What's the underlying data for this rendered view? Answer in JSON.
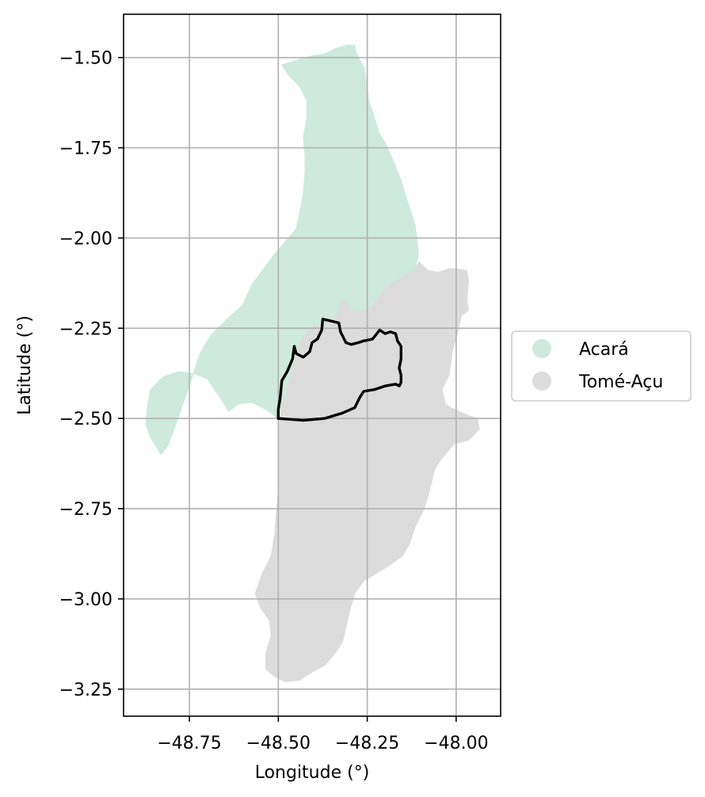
{
  "chart_data": {
    "type": "map",
    "xlabel": "Longitude (°)",
    "ylabel": "Latitude (°)",
    "xlim": [
      -48.935,
      -47.875
    ],
    "ylim": [
      -3.325,
      -1.38
    ],
    "xticks": [
      -48.75,
      -48.5,
      -48.25,
      -48.0
    ],
    "xtick_labels": [
      "−48.75",
      "−48.50",
      "−48.25",
      "−48.00"
    ],
    "yticks": [
      -1.5,
      -1.75,
      -2.0,
      -2.25,
      -2.5,
      -2.75,
      -3.0,
      -3.25
    ],
    "ytick_labels": [
      "−1.50",
      "−1.75",
      "−2.00",
      "−2.25",
      "−2.50",
      "−2.75",
      "−3.00",
      "−3.25"
    ],
    "grid": true,
    "legend_position": "right",
    "legend": [
      {
        "label": "Acará",
        "color": "#cdeadd"
      },
      {
        "label": "Tomé-Açu",
        "color": "#dcdcdc"
      }
    ],
    "regions": [
      {
        "name": "Acará",
        "color": "#cdeadd",
        "coordinates": [
          [
            -48.305,
            -1.465
          ],
          [
            -48.285,
            -1.466
          ],
          [
            -48.28,
            -1.49
          ],
          [
            -48.258,
            -1.53
          ],
          [
            -48.252,
            -1.57
          ],
          [
            -48.245,
            -1.62
          ],
          [
            -48.23,
            -1.665
          ],
          [
            -48.218,
            -1.705
          ],
          [
            -48.195,
            -1.745
          ],
          [
            -48.175,
            -1.79
          ],
          [
            -48.155,
            -1.84
          ],
          [
            -48.138,
            -1.895
          ],
          [
            -48.115,
            -1.965
          ],
          [
            -48.105,
            -2.045
          ],
          [
            -48.118,
            -2.09
          ],
          [
            -48.145,
            -2.105
          ],
          [
            -48.18,
            -2.125
          ],
          [
            -48.21,
            -2.155
          ],
          [
            -48.238,
            -2.19
          ],
          [
            -48.27,
            -2.205
          ],
          [
            -48.295,
            -2.2
          ],
          [
            -48.32,
            -2.205
          ],
          [
            -48.345,
            -2.225
          ],
          [
            -48.375,
            -2.235
          ],
          [
            -48.41,
            -2.25
          ],
          [
            -48.44,
            -2.29
          ],
          [
            -48.455,
            -2.345
          ],
          [
            -48.47,
            -2.395
          ],
          [
            -48.478,
            -2.43
          ],
          [
            -48.49,
            -2.465
          ],
          [
            -48.5,
            -2.5
          ],
          [
            -48.535,
            -2.475
          ],
          [
            -48.575,
            -2.455
          ],
          [
            -48.612,
            -2.46
          ],
          [
            -48.64,
            -2.48
          ],
          [
            -48.665,
            -2.44
          ],
          [
            -48.7,
            -2.39
          ],
          [
            -48.74,
            -2.375
          ],
          [
            -48.78,
            -2.37
          ],
          [
            -48.825,
            -2.385
          ],
          [
            -48.86,
            -2.42
          ],
          [
            -48.87,
            -2.48
          ],
          [
            -48.872,
            -2.52
          ],
          [
            -48.858,
            -2.555
          ],
          [
            -48.83,
            -2.6
          ],
          [
            -48.81,
            -2.575
          ],
          [
            -48.795,
            -2.535
          ],
          [
            -48.77,
            -2.465
          ],
          [
            -48.745,
            -2.395
          ],
          [
            -48.72,
            -2.32
          ],
          [
            -48.69,
            -2.27
          ],
          [
            -48.65,
            -2.23
          ],
          [
            -48.6,
            -2.185
          ],
          [
            -48.575,
            -2.13
          ],
          [
            -48.545,
            -2.09
          ],
          [
            -48.515,
            -2.05
          ],
          [
            -48.48,
            -2.01
          ],
          [
            -48.45,
            -1.975
          ],
          [
            -48.44,
            -1.93
          ],
          [
            -48.43,
            -1.875
          ],
          [
            -48.425,
            -1.82
          ],
          [
            -48.425,
            -1.77
          ],
          [
            -48.43,
            -1.72
          ],
          [
            -48.42,
            -1.67
          ],
          [
            -48.42,
            -1.62
          ],
          [
            -48.44,
            -1.58
          ],
          [
            -48.47,
            -1.55
          ],
          [
            -48.49,
            -1.52
          ],
          [
            -48.44,
            -1.505
          ],
          [
            -48.405,
            -1.495
          ],
          [
            -48.37,
            -1.49
          ],
          [
            -48.34,
            -1.475
          ]
        ]
      },
      {
        "name": "Tomé-Açu",
        "color": "#dcdcdc",
        "coordinates": [
          [
            -48.0,
            -2.085
          ],
          [
            -47.97,
            -2.09
          ],
          [
            -47.965,
            -2.12
          ],
          [
            -47.97,
            -2.17
          ],
          [
            -47.965,
            -2.2
          ],
          [
            -47.985,
            -2.215
          ],
          [
            -47.995,
            -2.26
          ],
          [
            -48.01,
            -2.31
          ],
          [
            -48.02,
            -2.38
          ],
          [
            -48.04,
            -2.42
          ],
          [
            -48.03,
            -2.46
          ],
          [
            -48.015,
            -2.47
          ],
          [
            -47.97,
            -2.49
          ],
          [
            -47.94,
            -2.5
          ],
          [
            -47.935,
            -2.53
          ],
          [
            -47.965,
            -2.56
          ],
          [
            -48.005,
            -2.57
          ],
          [
            -48.04,
            -2.61
          ],
          [
            -48.06,
            -2.64
          ],
          [
            -48.075,
            -2.7
          ],
          [
            -48.09,
            -2.75
          ],
          [
            -48.115,
            -2.8
          ],
          [
            -48.13,
            -2.845
          ],
          [
            -48.15,
            -2.88
          ],
          [
            -48.185,
            -2.905
          ],
          [
            -48.225,
            -2.93
          ],
          [
            -48.26,
            -2.95
          ],
          [
            -48.285,
            -2.985
          ],
          [
            -48.3,
            -3.035
          ],
          [
            -48.31,
            -3.08
          ],
          [
            -48.32,
            -3.12
          ],
          [
            -48.34,
            -3.15
          ],
          [
            -48.37,
            -3.185
          ],
          [
            -48.4,
            -3.2
          ],
          [
            -48.44,
            -3.225
          ],
          [
            -48.48,
            -3.23
          ],
          [
            -48.51,
            -3.215
          ],
          [
            -48.535,
            -3.195
          ],
          [
            -48.535,
            -3.15
          ],
          [
            -48.52,
            -3.1
          ],
          [
            -48.525,
            -3.06
          ],
          [
            -48.55,
            -3.025
          ],
          [
            -48.565,
            -2.985
          ],
          [
            -48.545,
            -2.93
          ],
          [
            -48.52,
            -2.88
          ],
          [
            -48.51,
            -2.82
          ],
          [
            -48.505,
            -2.755
          ],
          [
            -48.5,
            -2.7
          ],
          [
            -48.5,
            -2.63
          ],
          [
            -48.5,
            -2.56
          ],
          [
            -48.5,
            -2.5
          ],
          [
            -48.49,
            -2.465
          ],
          [
            -48.478,
            -2.43
          ],
          [
            -48.47,
            -2.395
          ],
          [
            -48.455,
            -2.345
          ],
          [
            -48.44,
            -2.29
          ],
          [
            -48.41,
            -2.25
          ],
          [
            -48.375,
            -2.235
          ],
          [
            -48.345,
            -2.225
          ],
          [
            -48.33,
            -2.2
          ],
          [
            -48.325,
            -2.175
          ],
          [
            -48.31,
            -2.17
          ],
          [
            -48.295,
            -2.2
          ],
          [
            -48.27,
            -2.205
          ],
          [
            -48.238,
            -2.19
          ],
          [
            -48.21,
            -2.155
          ],
          [
            -48.18,
            -2.125
          ],
          [
            -48.145,
            -2.105
          ],
          [
            -48.118,
            -2.09
          ],
          [
            -48.105,
            -2.065
          ],
          [
            -48.08,
            -2.09
          ],
          [
            -48.05,
            -2.095
          ],
          [
            -48.02,
            -2.085
          ]
        ]
      }
    ],
    "outline": {
      "color": "#000000",
      "coordinates": [
        [
          -48.5,
          -2.5
        ],
        [
          -48.43,
          -2.505
        ],
        [
          -48.37,
          -2.5
        ],
        [
          -48.32,
          -2.485
        ],
        [
          -48.285,
          -2.47
        ],
        [
          -48.27,
          -2.44
        ],
        [
          -48.26,
          -2.425
        ],
        [
          -48.23,
          -2.42
        ],
        [
          -48.2,
          -2.41
        ],
        [
          -48.17,
          -2.405
        ],
        [
          -48.16,
          -2.41
        ],
        [
          -48.155,
          -2.4
        ],
        [
          -48.155,
          -2.38
        ],
        [
          -48.16,
          -2.36
        ],
        [
          -48.155,
          -2.335
        ],
        [
          -48.155,
          -2.3
        ],
        [
          -48.165,
          -2.285
        ],
        [
          -48.17,
          -2.265
        ],
        [
          -48.185,
          -2.26
        ],
        [
          -48.2,
          -2.265
        ],
        [
          -48.215,
          -2.255
        ],
        [
          -48.235,
          -2.28
        ],
        [
          -48.26,
          -2.285
        ],
        [
          -48.275,
          -2.29
        ],
        [
          -48.295,
          -2.295
        ],
        [
          -48.31,
          -2.29
        ],
        [
          -48.325,
          -2.26
        ],
        [
          -48.33,
          -2.235
        ],
        [
          -48.36,
          -2.228
        ],
        [
          -48.375,
          -2.225
        ],
        [
          -48.378,
          -2.255
        ],
        [
          -48.39,
          -2.28
        ],
        [
          -48.405,
          -2.29
        ],
        [
          -48.412,
          -2.315
        ],
        [
          -48.43,
          -2.33
        ],
        [
          -48.45,
          -2.32
        ],
        [
          -48.455,
          -2.3
        ],
        [
          -48.46,
          -2.335
        ],
        [
          -48.475,
          -2.37
        ],
        [
          -48.49,
          -2.395
        ],
        [
          -48.495,
          -2.445
        ],
        [
          -48.5,
          -2.475
        ],
        [
          -48.5,
          -2.5
        ]
      ]
    }
  }
}
